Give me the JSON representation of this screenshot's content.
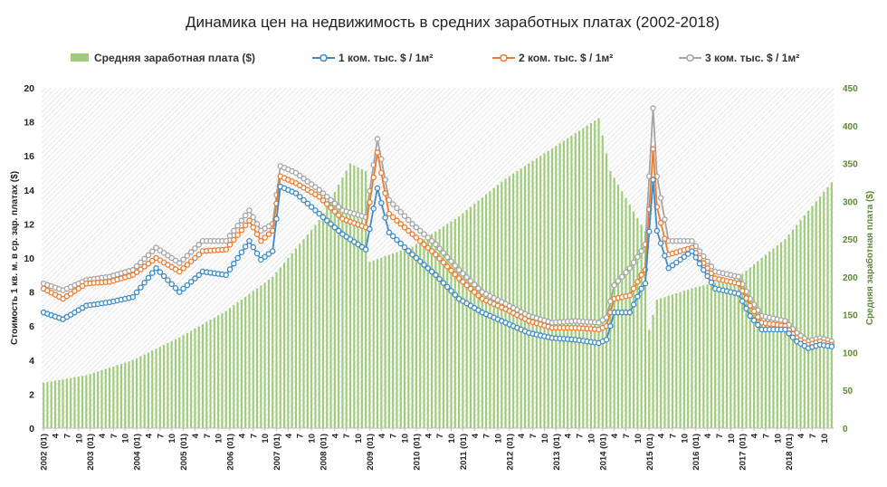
{
  "chart_data": {
    "type": "bar+line",
    "title": "Динамика цен на недвижимость в средних заработных платах (2002-2018)",
    "ylabel": "Стоимость 1 кв. м. в ср. зар. платах ($)",
    "y2label": "Средняя заработная плата ($)",
    "ylim": [
      0,
      20
    ],
    "y2lim": [
      0,
      450
    ],
    "y_ticks": [
      "0",
      "2",
      "4",
      "6",
      "8",
      "10",
      "12",
      "14",
      "16",
      "18",
      "20"
    ],
    "y2_ticks": [
      "0",
      "50",
      "100",
      "150",
      "200",
      "250",
      "300",
      "350",
      "400",
      "450"
    ],
    "grid": "hatched plot area",
    "legend_position": "top",
    "x_start": "2002-01",
    "x_end": "2018-12",
    "x_tick_labels": [
      "2002 (01)",
      "4",
      "7",
      "10",
      "2003 (01)",
      "4",
      "7",
      "10",
      "2004 (01)",
      "4",
      "7",
      "10",
      "2005 (01)",
      "4",
      "7",
      "10",
      "2006 (01)",
      "4",
      "7",
      "10",
      "2007 (01)",
      "4",
      "7",
      "10",
      "2008 (01)",
      "4",
      "7",
      "10",
      "2009 (01)",
      "4",
      "7",
      "10",
      "2010 (01)",
      "4",
      "7",
      "10",
      "2011 (01)",
      "4",
      "7",
      "10",
      "2012 (01)",
      "4",
      "7",
      "10",
      "2013 (01)",
      "4",
      "7",
      "10",
      "2014 (01)",
      "4",
      "7",
      "10",
      "2015 (01)",
      "4",
      "7",
      "10",
      "2016 (01)",
      "4",
      "7",
      "10",
      "2017 (01)",
      "4",
      "7",
      "10",
      "2018 (01)",
      "4",
      "7",
      "10"
    ],
    "bar_series": {
      "name": "Средняя заработная плата ($)",
      "color": "#9fcc7a",
      "axis": "right",
      "keyframes": [
        [
          "2002-01",
          60
        ],
        [
          "2002-12",
          70
        ],
        [
          "2003-12",
          90
        ],
        [
          "2004-12",
          120
        ],
        [
          "2005-12",
          155
        ],
        [
          "2006-12",
          200
        ],
        [
          "2007-12",
          275
        ],
        [
          "2008-08",
          350
        ],
        [
          "2008-12",
          340
        ],
        [
          "2009-01",
          220
        ],
        [
          "2009-12",
          240
        ],
        [
          "2010-12",
          280
        ],
        [
          "2011-12",
          330
        ],
        [
          "2012-12",
          370
        ],
        [
          "2013-12",
          410
        ],
        [
          "2014-03",
          340
        ],
        [
          "2014-12",
          260
        ],
        [
          "2015-01",
          130
        ],
        [
          "2015-03",
          170
        ],
        [
          "2015-12",
          185
        ],
        [
          "2016-12",
          200
        ],
        [
          "2017-12",
          250
        ],
        [
          "2018-12",
          325
        ]
      ]
    },
    "series": [
      {
        "name": "1 ком. тыс. $ / 1м²",
        "color": "#3d8bc9",
        "keyframes": [
          [
            "2002-01",
            6.8
          ],
          [
            "2002-06",
            6.4
          ],
          [
            "2002-12",
            7.2
          ],
          [
            "2003-06",
            7.4
          ],
          [
            "2003-12",
            7.7
          ],
          [
            "2004-06",
            9.4
          ],
          [
            "2004-12",
            8.0
          ],
          [
            "2005-06",
            9.2
          ],
          [
            "2005-12",
            9.0
          ],
          [
            "2006-06",
            11.0
          ],
          [
            "2006-09",
            9.9
          ],
          [
            "2006-12",
            10.4
          ],
          [
            "2007-02",
            14.2
          ],
          [
            "2007-06",
            13.8
          ],
          [
            "2007-12",
            12.6
          ],
          [
            "2008-06",
            11.4
          ],
          [
            "2008-12",
            10.5
          ],
          [
            "2009-03",
            14.1
          ],
          [
            "2009-06",
            11.5
          ],
          [
            "2009-12",
            10.2
          ],
          [
            "2010-06",
            9.0
          ],
          [
            "2010-12",
            7.6
          ],
          [
            "2011-06",
            6.8
          ],
          [
            "2011-12",
            6.2
          ],
          [
            "2012-06",
            5.6
          ],
          [
            "2012-12",
            5.3
          ],
          [
            "2013-06",
            5.2
          ],
          [
            "2013-12",
            5.0
          ],
          [
            "2014-02",
            5.2
          ],
          [
            "2014-04",
            6.8
          ],
          [
            "2014-08",
            6.8
          ],
          [
            "2014-11",
            8.2
          ],
          [
            "2014-12",
            8.5
          ],
          [
            "2015-02",
            14.6
          ],
          [
            "2015-03",
            11.6
          ],
          [
            "2015-06",
            9.4
          ],
          [
            "2015-12",
            10.4
          ],
          [
            "2016-06",
            8.2
          ],
          [
            "2016-12",
            7.9
          ],
          [
            "2017-03",
            6.6
          ],
          [
            "2017-06",
            5.8
          ],
          [
            "2017-12",
            5.8
          ],
          [
            "2018-03",
            5.1
          ],
          [
            "2018-06",
            4.7
          ],
          [
            "2018-09",
            4.9
          ],
          [
            "2018-12",
            4.8
          ]
        ]
      },
      {
        "name": "2 ком. тыс. $ / 1м²",
        "color": "#ed7d31",
        "keyframes": [
          [
            "2002-01",
            8.2
          ],
          [
            "2002-06",
            7.6
          ],
          [
            "2002-12",
            8.5
          ],
          [
            "2003-06",
            8.6
          ],
          [
            "2003-12",
            9.0
          ],
          [
            "2004-06",
            10.0
          ],
          [
            "2004-12",
            9.2
          ],
          [
            "2005-06",
            10.4
          ],
          [
            "2005-12",
            10.5
          ],
          [
            "2006-06",
            12.2
          ],
          [
            "2006-09",
            11.0
          ],
          [
            "2006-12",
            11.6
          ],
          [
            "2007-02",
            14.8
          ],
          [
            "2007-06",
            14.4
          ],
          [
            "2007-12",
            13.6
          ],
          [
            "2008-06",
            12.3
          ],
          [
            "2008-12",
            11.8
          ],
          [
            "2009-03",
            16.2
          ],
          [
            "2009-06",
            12.6
          ],
          [
            "2009-12",
            11.4
          ],
          [
            "2010-06",
            10.2
          ],
          [
            "2010-12",
            8.8
          ],
          [
            "2011-06",
            7.6
          ],
          [
            "2011-12",
            7.0
          ],
          [
            "2012-06",
            6.3
          ],
          [
            "2012-12",
            5.9
          ],
          [
            "2013-06",
            5.9
          ],
          [
            "2013-12",
            5.8
          ],
          [
            "2014-02",
            6.0
          ],
          [
            "2014-04",
            7.6
          ],
          [
            "2014-08",
            7.8
          ],
          [
            "2014-11",
            9.0
          ],
          [
            "2014-12",
            9.3
          ],
          [
            "2015-02",
            16.4
          ],
          [
            "2015-03",
            13.0
          ],
          [
            "2015-06",
            10.2
          ],
          [
            "2015-12",
            10.6
          ],
          [
            "2016-06",
            8.8
          ],
          [
            "2016-12",
            8.5
          ],
          [
            "2017-03",
            7.2
          ],
          [
            "2017-06",
            6.2
          ],
          [
            "2017-12",
            6.0
          ],
          [
            "2018-03",
            5.3
          ],
          [
            "2018-06",
            4.9
          ],
          [
            "2018-09",
            5.1
          ],
          [
            "2018-12",
            4.9
          ]
        ]
      },
      {
        "name": "3 ком. тыс. $ / 1м²",
        "color": "#a5a5a5",
        "keyframes": [
          [
            "2002-01",
            8.5
          ],
          [
            "2002-06",
            8.1
          ],
          [
            "2002-12",
            8.7
          ],
          [
            "2003-06",
            8.9
          ],
          [
            "2003-12",
            9.3
          ],
          [
            "2004-06",
            10.6
          ],
          [
            "2004-12",
            9.7
          ],
          [
            "2005-06",
            11.0
          ],
          [
            "2005-12",
            11.0
          ],
          [
            "2006-06",
            12.8
          ],
          [
            "2006-09",
            11.6
          ],
          [
            "2006-12",
            12.0
          ],
          [
            "2007-02",
            15.4
          ],
          [
            "2007-06",
            15.0
          ],
          [
            "2007-12",
            14.0
          ],
          [
            "2008-06",
            12.8
          ],
          [
            "2008-12",
            12.4
          ],
          [
            "2009-03",
            17.0
          ],
          [
            "2009-06",
            13.4
          ],
          [
            "2009-12",
            12.0
          ],
          [
            "2010-06",
            10.8
          ],
          [
            "2010-12",
            9.3
          ],
          [
            "2011-06",
            8.0
          ],
          [
            "2011-12",
            7.3
          ],
          [
            "2012-06",
            6.6
          ],
          [
            "2012-12",
            6.2
          ],
          [
            "2013-06",
            6.3
          ],
          [
            "2013-12",
            6.2
          ],
          [
            "2014-02",
            6.5
          ],
          [
            "2014-04",
            8.4
          ],
          [
            "2014-08",
            9.4
          ],
          [
            "2014-11",
            10.4
          ],
          [
            "2014-12",
            10.8
          ],
          [
            "2015-02",
            18.8
          ],
          [
            "2015-03",
            14.8
          ],
          [
            "2015-06",
            11.0
          ],
          [
            "2015-12",
            11.0
          ],
          [
            "2016-06",
            9.2
          ],
          [
            "2016-12",
            8.9
          ],
          [
            "2017-03",
            7.6
          ],
          [
            "2017-06",
            6.6
          ],
          [
            "2017-12",
            6.3
          ],
          [
            "2018-03",
            5.6
          ],
          [
            "2018-06",
            5.1
          ],
          [
            "2018-09",
            5.3
          ],
          [
            "2018-12",
            5.1
          ]
        ]
      }
    ]
  }
}
